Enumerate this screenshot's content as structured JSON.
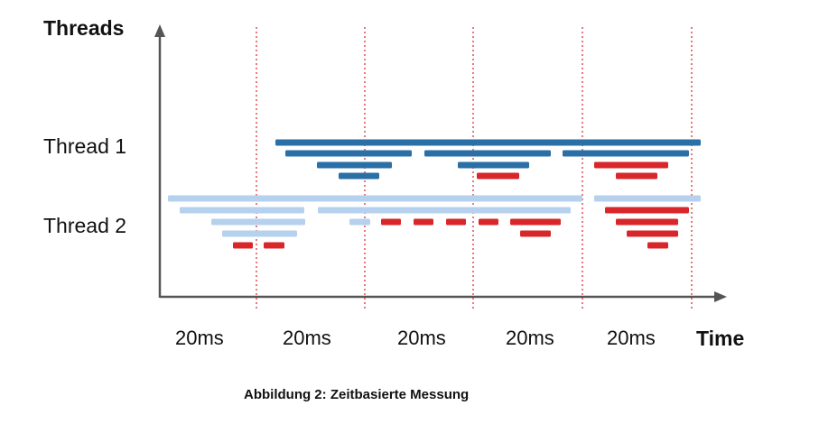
{
  "axis": {
    "y_title": "Threads",
    "x_title": "Time"
  },
  "threads": [
    "Thread 1",
    "Thread 2"
  ],
  "intervals": [
    "20ms",
    "20ms",
    "20ms",
    "20ms",
    "20ms"
  ],
  "caption": "Abbildung 2: Zeitbasierte Messung",
  "colors": {
    "thread1": "#2a6fa5",
    "thread2": "#b6d1ee",
    "measurement": "#d9262a",
    "interval_line": "#e05a5a",
    "axis": "#555555"
  }
}
